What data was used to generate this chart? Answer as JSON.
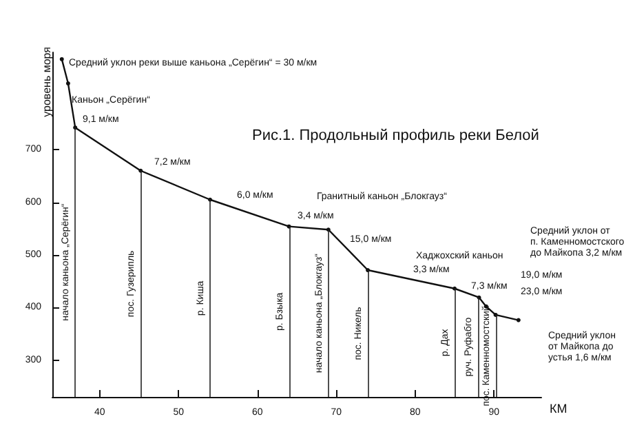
{
  "chart_data": {
    "type": "line",
    "title": "Рис.1. Продольный профиль реки Белой",
    "xlabel": "КМ",
    "ylabel": "уровень моря",
    "x": [
      35.2,
      36.0,
      36.9,
      45.2,
      54.0,
      64.0,
      69.0,
      74.0,
      85.0,
      88.1,
      89.0,
      90.2,
      93.1
    ],
    "series": [
      {
        "color": "#111111",
        "values": [
          872,
          826,
          742,
          660,
          605,
          554,
          548,
          471,
          436,
          419,
          402,
          386,
          376
        ]
      }
    ],
    "xlim": [
      34,
      96
    ],
    "ylim": [
      230,
      885
    ],
    "xticks": [
      40,
      50,
      60,
      70,
      80,
      90
    ],
    "yticks": [
      300,
      400,
      500,
      600,
      700
    ],
    "grid": false,
    "marker": "circle",
    "line_style": "solid",
    "ref_lines": [
      {
        "axis": "x",
        "value": 36.9,
        "label": "начало каньона „Серёгин“"
      },
      {
        "axis": "x",
        "value": 45.2,
        "label": "пос. Гузерипль"
      },
      {
        "axis": "x",
        "value": 54.0,
        "label": "р. Киша"
      },
      {
        "axis": "x",
        "value": 64.0,
        "label": "р. Бзыка"
      },
      {
        "axis": "x",
        "value": 69.0,
        "label": "начало каньона „Блокгауз“"
      },
      {
        "axis": "x",
        "value": 74.0,
        "label": "пос. Никель"
      },
      {
        "axis": "x",
        "value": 85.0,
        "label": "р. Дах"
      },
      {
        "axis": "x",
        "value": 88.0,
        "label": "руч. Руфабго"
      },
      {
        "axis": "x",
        "value": 90.2,
        "label": "пос. Каменномостский"
      }
    ],
    "annotations": [
      "Средний уклон реки выше каньона „Серёгин“ = 30 м/км",
      "Каньон „Серёгин“",
      "9,1 м/км",
      "7,2 м/км",
      "6,0 м/км",
      "3,4 м/км",
      "Гранитный каньон „Блокгауз“",
      "15,0 м/км",
      "Хаджохский каньон",
      "3,3 м/км",
      "7,3 м/км",
      "19,0 м/км",
      "23,0 м/км",
      "Средний уклон от\nп. Каменномостского\nдо Майкопа 3,2 м/км",
      "Средний уклон\nот Майкопа до\nустья 1,6 м/км"
    ]
  }
}
